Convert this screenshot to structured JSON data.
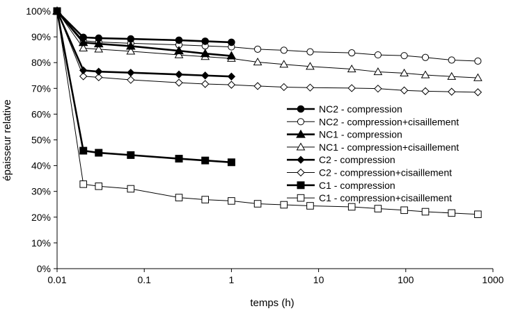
{
  "chart_data": {
    "type": "line",
    "title": "",
    "xlabel": "temps (h)",
    "ylabel": "épaisseur relative",
    "xscale": "log",
    "xlim": [
      0.01,
      1000
    ],
    "ylim": [
      0,
      100
    ],
    "xticks": [
      0.01,
      0.1,
      1,
      10,
      100,
      1000
    ],
    "xtick_labels": [
      "0.01",
      "0.1",
      "1",
      "10",
      "100",
      "1000"
    ],
    "yticks": [
      0,
      10,
      20,
      30,
      40,
      50,
      60,
      70,
      80,
      90,
      100
    ],
    "ytick_labels": [
      "0%",
      "10%",
      "20%",
      "30%",
      "40%",
      "50%",
      "60%",
      "70%",
      "80%",
      "90%",
      "100%"
    ],
    "grid": false,
    "legend_position": "right",
    "series": [
      {
        "name": "NC2 - compression",
        "marker": "circle",
        "filled": true,
        "bold": true,
        "x": [
          0.01,
          0.02,
          0.03,
          0.07,
          0.25,
          0.5,
          1
        ],
        "y": [
          100,
          89.8,
          89.5,
          89.2,
          88.7,
          88.3,
          87.9
        ]
      },
      {
        "name": "NC2 - compression+cisaillement",
        "marker": "circle",
        "filled": false,
        "bold": false,
        "x": [
          0.01,
          0.02,
          0.03,
          0.07,
          0.25,
          0.5,
          1,
          2,
          4,
          8,
          24,
          48,
          96,
          168,
          336,
          672
        ],
        "y": [
          100,
          88.5,
          88.0,
          87.5,
          86.9,
          86.5,
          86.1,
          85.2,
          84.8,
          84.2,
          83.8,
          83.0,
          82.7,
          82.0,
          81.0,
          80.6
        ]
      },
      {
        "name": "NC1 - compression",
        "marker": "triangle",
        "filled": true,
        "bold": true,
        "x": [
          0.01,
          0.02,
          0.03,
          0.07,
          0.25,
          0.5,
          1
        ],
        "y": [
          100,
          87.8,
          87.3,
          86.4,
          84.6,
          83.5,
          82.6
        ]
      },
      {
        "name": "NC1 - compression+cisaillement",
        "marker": "triangle",
        "filled": false,
        "bold": false,
        "x": [
          0.01,
          0.02,
          0.03,
          0.07,
          0.25,
          0.5,
          1,
          2,
          4,
          8,
          24,
          48,
          96,
          168,
          336,
          672
        ],
        "y": [
          100,
          85.6,
          85.2,
          84.4,
          83.0,
          82.3,
          81.6,
          80.2,
          79.3,
          78.5,
          77.5,
          76.4,
          75.9,
          75.2,
          74.6,
          74.1
        ]
      },
      {
        "name": "C2 - compression",
        "marker": "diamond",
        "filled": true,
        "bold": true,
        "x": [
          0.01,
          0.02,
          0.03,
          0.07,
          0.25,
          0.5,
          1
        ],
        "y": [
          100,
          77.0,
          76.5,
          76.1,
          75.4,
          75.0,
          74.6
        ]
      },
      {
        "name": "C2 - compression+cisaillement",
        "marker": "diamond",
        "filled": false,
        "bold": false,
        "x": [
          0.01,
          0.02,
          0.03,
          0.07,
          0.25,
          0.5,
          1,
          2,
          4,
          8,
          24,
          48,
          96,
          168,
          336,
          672
        ],
        "y": [
          100,
          74.7,
          74.3,
          73.3,
          72.2,
          71.7,
          71.4,
          70.9,
          70.5,
          70.3,
          70.1,
          69.9,
          69.2,
          68.9,
          68.7,
          68.5
        ]
      },
      {
        "name": "C1 - compression",
        "marker": "square",
        "filled": true,
        "bold": true,
        "x": [
          0.01,
          0.02,
          0.03,
          0.07,
          0.25,
          0.5,
          1
        ],
        "y": [
          100,
          45.8,
          45.0,
          44.1,
          42.7,
          42.0,
          41.3
        ]
      },
      {
        "name": "C1 - compression+cisaillement",
        "marker": "square",
        "filled": false,
        "bold": false,
        "x": [
          0.01,
          0.02,
          0.03,
          0.07,
          0.25,
          0.5,
          1,
          2,
          4,
          8,
          24,
          48,
          96,
          168,
          336,
          672
        ],
        "y": [
          100,
          32.8,
          32.0,
          31.0,
          27.6,
          26.8,
          26.3,
          25.2,
          24.8,
          24.4,
          24.0,
          23.3,
          22.7,
          22.1,
          21.6,
          21.1
        ]
      }
    ]
  }
}
